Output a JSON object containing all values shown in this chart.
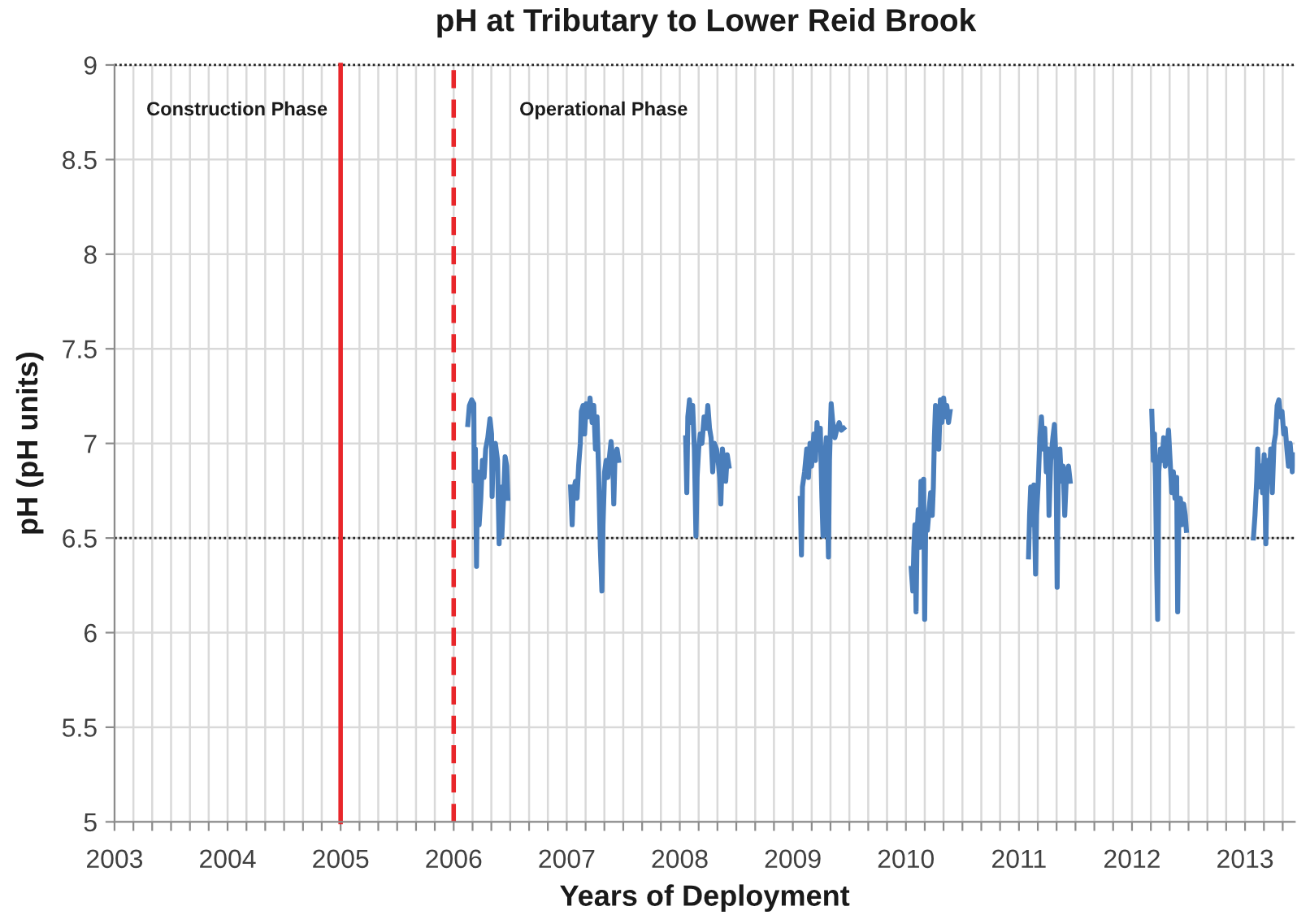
{
  "chart_data": {
    "type": "line",
    "title": "pH at Tributary to Lower Reid Brook",
    "xlabel": "Years of Deployment",
    "ylabel": "pH (pH units)",
    "x": [
      2006.125,
      2006.139,
      2006.159,
      2006.178,
      2006.182,
      2006.192,
      2006.202,
      2006.211,
      2006.225,
      2006.24,
      2006.254,
      2006.269,
      2006.283,
      2006.302,
      2006.321,
      2006.335,
      2006.34,
      2006.35,
      2006.369,
      2006.388,
      2006.402,
      2006.412,
      2006.426,
      2006.441,
      2006.455,
      2006.469,
      2006.479,
      2006.75,
      2007.034,
      2007.048,
      2007.058,
      2007.077,
      2007.091,
      2007.105,
      2007.12,
      2007.129,
      2007.144,
      2007.158,
      2007.172,
      2007.191,
      2007.206,
      2007.225,
      2007.239,
      2007.254,
      2007.268,
      2007.282,
      2007.297,
      2007.311,
      2007.321,
      2007.335,
      2007.349,
      2007.364,
      2007.378,
      2007.392,
      2007.407,
      2007.416,
      2007.426,
      2007.445,
      2007.459,
      2007.75,
      2008.052,
      2008.062,
      2008.071,
      2008.086,
      2008.1,
      2008.114,
      2008.129,
      2008.143,
      2008.153,
      2008.167,
      2008.181,
      2008.196,
      2008.215,
      2008.234,
      2008.248,
      2008.263,
      2008.277,
      2008.291,
      2008.306,
      2008.325,
      2008.339,
      2008.353,
      2008.363,
      2008.377,
      2008.392,
      2008.406,
      2008.42,
      2008.435,
      2008.75,
      2009.066,
      2009.076,
      2009.085,
      2009.104,
      2009.123,
      2009.138,
      2009.152,
      2009.166,
      2009.186,
      2009.2,
      2009.214,
      2009.229,
      2009.243,
      2009.257,
      2009.267,
      2009.281,
      2009.296,
      2009.305,
      2009.315,
      2009.324,
      2009.339,
      2009.353,
      2009.372,
      2009.391,
      2009.41,
      2009.429,
      2009.449,
      2009.75,
      2010.047,
      2010.061,
      2010.071,
      2010.08,
      2010.09,
      2010.099,
      2010.109,
      2010.123,
      2010.133,
      2010.147,
      2010.157,
      2010.166,
      2010.176,
      2010.19,
      2010.205,
      2010.219,
      2010.233,
      2010.243,
      2010.252,
      2010.262,
      2010.276,
      2010.291,
      2010.305,
      2010.319,
      2010.334,
      2010.348,
      2010.362,
      2010.377,
      2010.391,
      2010.75,
      2011.085,
      2011.094,
      2011.104,
      2011.118,
      2011.132,
      2011.147,
      2011.156,
      2011.171,
      2011.185,
      2011.199,
      2011.214,
      2011.228,
      2011.242,
      2011.257,
      2011.266,
      2011.281,
      2011.3,
      2011.314,
      2011.328,
      2011.338,
      2011.348,
      2011.362,
      2011.376,
      2011.391,
      2011.405,
      2011.419,
      2011.438,
      2011.453,
      2011.75,
      2012.175,
      2012.189,
      2012.199,
      2012.208,
      2012.218,
      2012.227,
      2012.237,
      2012.251,
      2012.266,
      2012.28,
      2012.294,
      2012.309,
      2012.323,
      2012.337,
      2012.352,
      2012.366,
      2012.38,
      2012.395,
      2012.404,
      2012.414,
      2012.428,
      2012.443,
      2012.457,
      2012.471,
      2012.481,
      2012.75,
      2013.074,
      2013.088,
      2013.103,
      2013.112,
      2013.126,
      2013.141,
      2013.155,
      2013.169,
      2013.184,
      2013.198,
      2013.213,
      2013.227,
      2013.241,
      2013.256,
      2013.27,
      2013.284,
      2013.299,
      2013.313,
      2013.327,
      2013.342,
      2013.356,
      2013.37,
      2013.384,
      2013.399,
      2013.418,
      2013.432
    ],
    "series": [
      {
        "color": "#4a7ebb",
        "values": [
          7.1,
          7.2,
          7.23,
          7.21,
          6.8,
          6.97,
          6.35,
          6.85,
          6.57,
          6.71,
          6.91,
          6.82,
          6.97,
          7.03,
          7.13,
          7.05,
          6.72,
          6.97,
          7.0,
          6.91,
          6.47,
          6.77,
          6.51,
          6.71,
          6.93,
          6.88,
          6.71,
          null,
          6.77,
          6.57,
          6.74,
          6.8,
          6.71,
          6.88,
          7.0,
          7.17,
          7.2,
          7.05,
          7.21,
          7.14,
          7.24,
          7.11,
          7.2,
          6.97,
          7.14,
          6.85,
          6.45,
          6.22,
          6.57,
          6.85,
          6.91,
          6.82,
          6.93,
          7.01,
          6.91,
          6.68,
          6.91,
          6.97,
          6.91,
          null,
          7.03,
          6.74,
          7.14,
          7.23,
          7.11,
          7.2,
          6.97,
          6.51,
          6.82,
          6.97,
          7.05,
          7.0,
          7.14,
          7.08,
          7.2,
          7.08,
          7.03,
          6.85,
          7.0,
          6.97,
          6.91,
          6.82,
          6.68,
          6.97,
          6.88,
          6.8,
          6.94,
          6.88,
          null,
          6.71,
          6.41,
          6.77,
          6.85,
          6.97,
          6.82,
          7.0,
          6.88,
          7.05,
          6.91,
          7.11,
          6.97,
          7.08,
          6.71,
          6.51,
          6.91,
          7.03,
          6.71,
          6.4,
          6.91,
          7.21,
          7.11,
          7.03,
          7.08,
          7.11,
          7.07,
          7.08,
          null,
          6.34,
          6.22,
          6.45,
          6.57,
          6.11,
          6.51,
          6.65,
          6.45,
          6.8,
          6.71,
          6.81,
          6.07,
          6.62,
          6.54,
          6.65,
          6.74,
          6.62,
          6.77,
          7.03,
          7.2,
          7.08,
          6.97,
          7.23,
          7.11,
          7.24,
          7.14,
          7.2,
          7.11,
          7.17,
          null,
          6.4,
          6.62,
          6.77,
          6.57,
          6.78,
          6.31,
          6.62,
          6.8,
          7.03,
          7.14,
          6.97,
          7.08,
          6.85,
          6.97,
          6.62,
          6.91,
          7.03,
          7.1,
          6.91,
          6.24,
          6.85,
          6.97,
          6.8,
          6.88,
          6.62,
          6.82,
          6.88,
          6.8,
          null,
          7.17,
          6.91,
          7.05,
          6.8,
          6.34,
          6.07,
          6.85,
          6.97,
          6.91,
          7.03,
          6.88,
          6.97,
          7.07,
          6.91,
          6.74,
          6.85,
          6.71,
          6.82,
          6.11,
          6.62,
          6.71,
          6.57,
          6.68,
          6.62,
          6.54,
          null,
          6.5,
          6.62,
          6.8,
          6.97,
          6.77,
          6.88,
          6.74,
          6.94,
          6.47,
          6.91,
          6.8,
          6.97,
          6.74,
          7.0,
          7.05,
          7.2,
          7.23,
          7.14,
          7.17,
          7.05,
          7.08,
          6.97,
          6.88,
          7.0,
          6.85,
          6.94
        ]
      }
    ],
    "xlim": [
      2003,
      2013.44
    ],
    "ylim": [
      5,
      9
    ],
    "xticks": [
      2003,
      {
        "value": 2003.167,
        "label": null
      },
      {
        "value": 2003.333,
        "label": null
      },
      {
        "value": 2003.5,
        "label": null
      },
      {
        "value": 2003.667,
        "label": null
      },
      {
        "value": 2003.833,
        "label": null
      },
      2004,
      {
        "value": 2004.167,
        "label": null
      },
      {
        "value": 2004.333,
        "label": null
      },
      {
        "value": 2004.5,
        "label": null
      },
      {
        "value": 2004.667,
        "label": null
      },
      {
        "value": 2004.833,
        "label": null
      },
      2005,
      {
        "value": 2005.167,
        "label": null
      },
      {
        "value": 2005.333,
        "label": null
      },
      {
        "value": 2005.5,
        "label": null
      },
      {
        "value": 2005.667,
        "label": null
      },
      {
        "value": 2005.833,
        "label": null
      },
      2006,
      {
        "value": 2006.167,
        "label": null
      },
      {
        "value": 2006.333,
        "label": null
      },
      {
        "value": 2006.5,
        "label": null
      },
      {
        "value": 2006.667,
        "label": null
      },
      {
        "value": 2006.833,
        "label": null
      },
      2007,
      {
        "value": 2007.167,
        "label": null
      },
      {
        "value": 2007.333,
        "label": null
      },
      {
        "value": 2007.5,
        "label": null
      },
      {
        "value": 2007.667,
        "label": null
      },
      {
        "value": 2007.833,
        "label": null
      },
      2008,
      {
        "value": 2008.167,
        "label": null
      },
      {
        "value": 2008.333,
        "label": null
      },
      {
        "value": 2008.5,
        "label": null
      },
      {
        "value": 2008.667,
        "label": null
      },
      {
        "value": 2008.833,
        "label": null
      },
      2009,
      {
        "value": 2009.167,
        "label": null
      },
      {
        "value": 2009.333,
        "label": null
      },
      {
        "value": 2009.5,
        "label": null
      },
      {
        "value": 2009.667,
        "label": null
      },
      {
        "value": 2009.833,
        "label": null
      },
      2010,
      {
        "value": 2010.167,
        "label": null
      },
      {
        "value": 2010.333,
        "label": null
      },
      {
        "value": 2010.5,
        "label": null
      },
      {
        "value": 2010.667,
        "label": null
      },
      {
        "value": 2010.833,
        "label": null
      },
      2011,
      {
        "value": 2011.167,
        "label": null
      },
      {
        "value": 2011.333,
        "label": null
      },
      {
        "value": 2011.5,
        "label": null
      },
      {
        "value": 2011.667,
        "label": null
      },
      {
        "value": 2011.833,
        "label": null
      },
      2012,
      {
        "value": 2012.167,
        "label": null
      },
      {
        "value": 2012.333,
        "label": null
      },
      {
        "value": 2012.5,
        "label": null
      },
      {
        "value": 2012.667,
        "label": null
      },
      {
        "value": 2012.833,
        "label": null
      },
      2013,
      {
        "value": 2013.167,
        "label": null
      },
      {
        "value": 2013.333,
        "label": null
      }
    ],
    "yticks": [
      5,
      5.5,
      6,
      6.5,
      7,
      7.5,
      8,
      8.5,
      9
    ],
    "grid": true,
    "line_style": "solid",
    "ref_lines": [
      {
        "axis": "y",
        "value": 6.5,
        "color": "#222222",
        "line_style": "dotted"
      },
      {
        "axis": "y",
        "value": 9,
        "color": "#222222",
        "line_style": "dotted"
      },
      {
        "axis": "x",
        "value": 2005,
        "color": "#e8262a",
        "line_style": "solid"
      },
      {
        "axis": "x",
        "value": 2006,
        "color": "#e8262a",
        "line_style": "dashed"
      }
    ],
    "annotations": [
      "Construction Phase",
      "Operational Phase"
    ]
  }
}
